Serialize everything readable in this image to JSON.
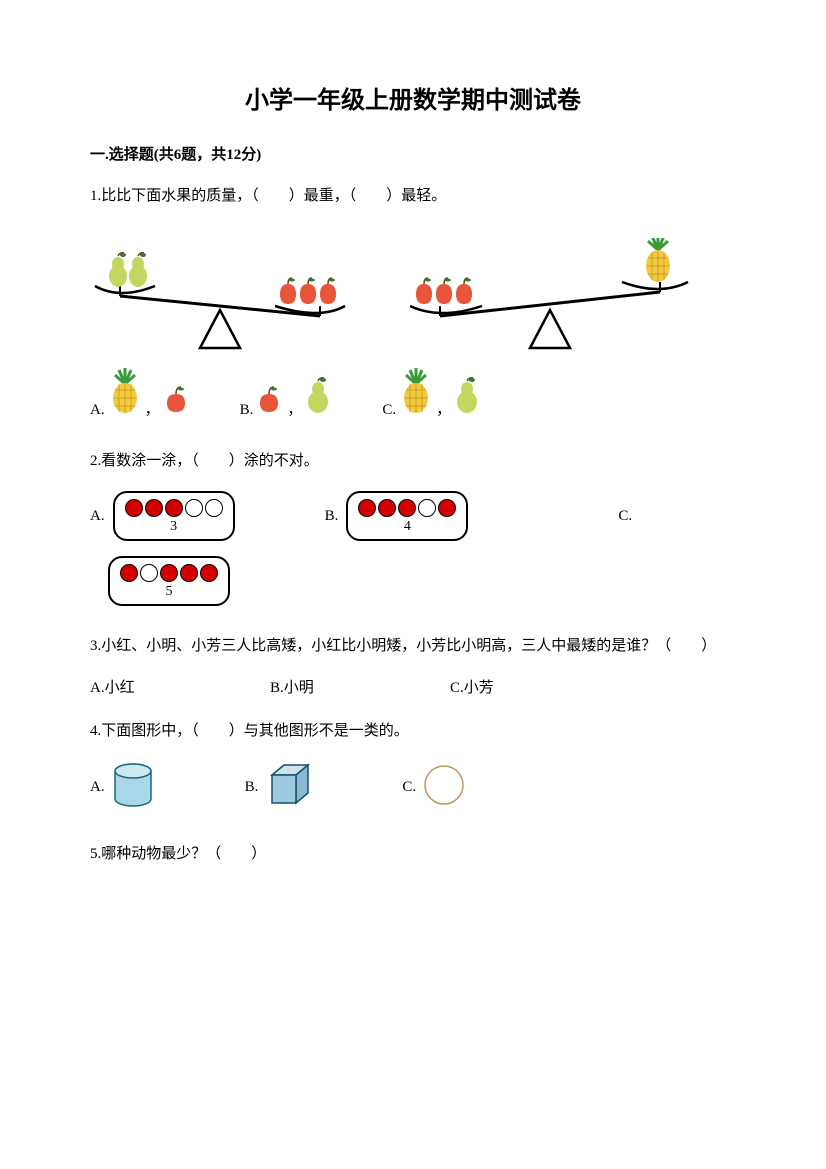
{
  "title": "小学一年级上册数学期中测试卷",
  "section1_header": "一.选择题(共6题，共12分)",
  "q1": {
    "text": "1.比比下面水果的质量，（　　）最重，（　　）最轻。",
    "optA_label": "A.",
    "optB_label": "B.",
    "optC_label": "C.",
    "comma": "，"
  },
  "q2": {
    "text": "2.看数涂一涂，（　　）涂的不对。",
    "optA_label": "A.",
    "optA_num": "3",
    "optA_pattern": [
      "f",
      "f",
      "f",
      "e",
      "e"
    ],
    "optB_label": "B.",
    "optB_num": "4",
    "optB_pattern": [
      "f",
      "f",
      "f",
      "e",
      "f"
    ],
    "optC_label": "C.",
    "optC_num": "5",
    "optC_pattern": [
      "f",
      "e",
      "f",
      "f",
      "f"
    ]
  },
  "q3": {
    "text": "3.小红、小明、小芳三人比高矮，小红比小明矮，小芳比小明高，三人中最矮的是谁？（　　）",
    "optA": "A.小红",
    "optB": "B.小明",
    "optC": "C.小芳"
  },
  "q4": {
    "text": "4.下面图形中，（　　）与其他图形不是一类的。",
    "optA_label": "A.",
    "optB_label": "B.",
    "optC_label": "C."
  },
  "q5": {
    "text": "5.哪种动物最少？（　　）"
  },
  "colors": {
    "pear_body": "#c4d65f",
    "pear_leaf": "#2e7d32",
    "apple_body": "#e8553a",
    "apple_leaf": "#2e7d32",
    "pineapple_body": "#f5c93d",
    "pineapple_leaf": "#3a9b3a",
    "pineapple_pattern": "#c9a227",
    "cylinder_fill": "#a8d8e8",
    "cylinder_stroke": "#1a6680",
    "cube_fill": "#9cc9e0",
    "cube_stroke": "#15506b",
    "sphere_stroke": "#b89a5e",
    "scale_stroke": "#000000",
    "circle_fill": "#d40000"
  }
}
